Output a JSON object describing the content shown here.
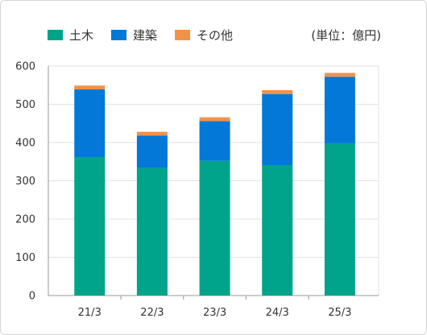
{
  "unit_label": "(単位：億円)",
  "colors": {
    "civil": "#00a48a",
    "building": "#0478d6",
    "other": "#f19249"
  },
  "chart_data": {
    "type": "bar",
    "stacked": true,
    "categories": [
      "21/3",
      "22/3",
      "23/3",
      "24/3",
      "25/3"
    ],
    "series": [
      {
        "name": "土木",
        "values": [
          362,
          333,
          352,
          341,
          398
        ]
      },
      {
        "name": "建築",
        "values": [
          177,
          85,
          104,
          186,
          174
        ]
      },
      {
        "name": "その他",
        "values": [
          10,
          10,
          10,
          10,
          10
        ]
      }
    ],
    "ylim": [
      0,
      600
    ],
    "yticks": [
      0,
      100,
      200,
      300,
      400,
      500,
      600
    ],
    "xlabel": "",
    "ylabel": "",
    "grid": true,
    "legend": "top-left"
  }
}
